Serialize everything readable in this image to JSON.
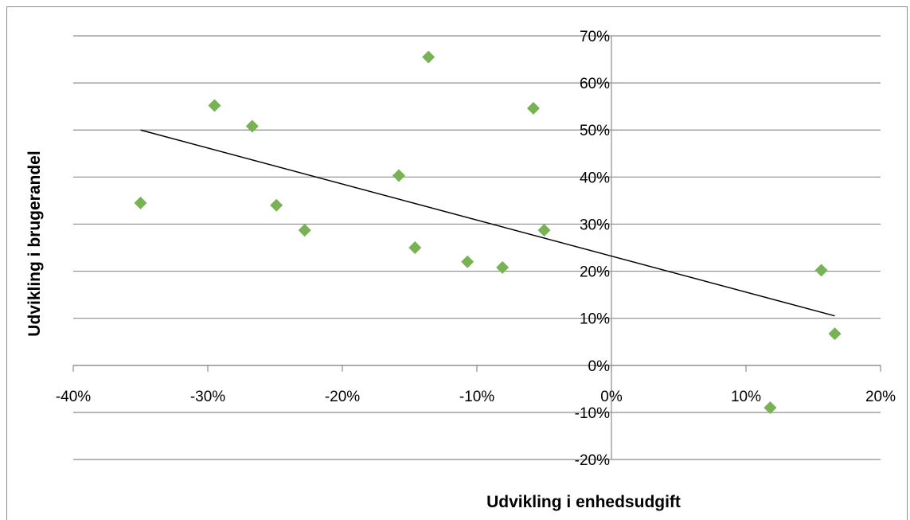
{
  "chart_data": {
    "type": "scatter",
    "title": "",
    "xlabel": "Udvikling i enhedsudgift",
    "ylabel": "Udvikling i brugerandel",
    "xlim": [
      -0.4,
      0.2
    ],
    "ylim": [
      -0.2,
      0.7
    ],
    "x_ticks": [
      -0.4,
      -0.3,
      -0.2,
      -0.1,
      0,
      0.1,
      0.2
    ],
    "x_tick_labels": [
      "-40%",
      "-30%",
      "-20%",
      "-10%",
      "0%",
      "10%",
      "20%"
    ],
    "y_ticks": [
      0.7,
      0.6,
      0.5,
      0.4,
      0.3,
      0.2,
      0.1,
      0,
      -0.1,
      -0.2
    ],
    "y_tick_labels": [
      "70%",
      "60%",
      "50%",
      "40%",
      "30%",
      "20%",
      "10%",
      "0%",
      "-10%",
      "-20%"
    ],
    "grid": true,
    "legend": "none",
    "marker_color": "#77b255",
    "trendline_color": "#000000",
    "series": [
      {
        "points": [
          {
            "x": -0.35,
            "y": 0.345
          },
          {
            "x": -0.295,
            "y": 0.552
          },
          {
            "x": -0.267,
            "y": 0.508
          },
          {
            "x": -0.249,
            "y": 0.34
          },
          {
            "x": -0.228,
            "y": 0.287
          },
          {
            "x": -0.158,
            "y": 0.403
          },
          {
            "x": -0.146,
            "y": 0.25
          },
          {
            "x": -0.136,
            "y": 0.655
          },
          {
            "x": -0.107,
            "y": 0.22
          },
          {
            "x": -0.081,
            "y": 0.208
          },
          {
            "x": -0.058,
            "y": 0.546
          },
          {
            "x": -0.05,
            "y": 0.287
          },
          {
            "x": 0.118,
            "y": -0.09
          },
          {
            "x": 0.156,
            "y": 0.202
          },
          {
            "x": 0.166,
            "y": 0.067
          }
        ]
      }
    ],
    "trendline": {
      "x": [
        -0.35,
        0.166
      ],
      "y": [
        0.5,
        0.105
      ]
    }
  }
}
